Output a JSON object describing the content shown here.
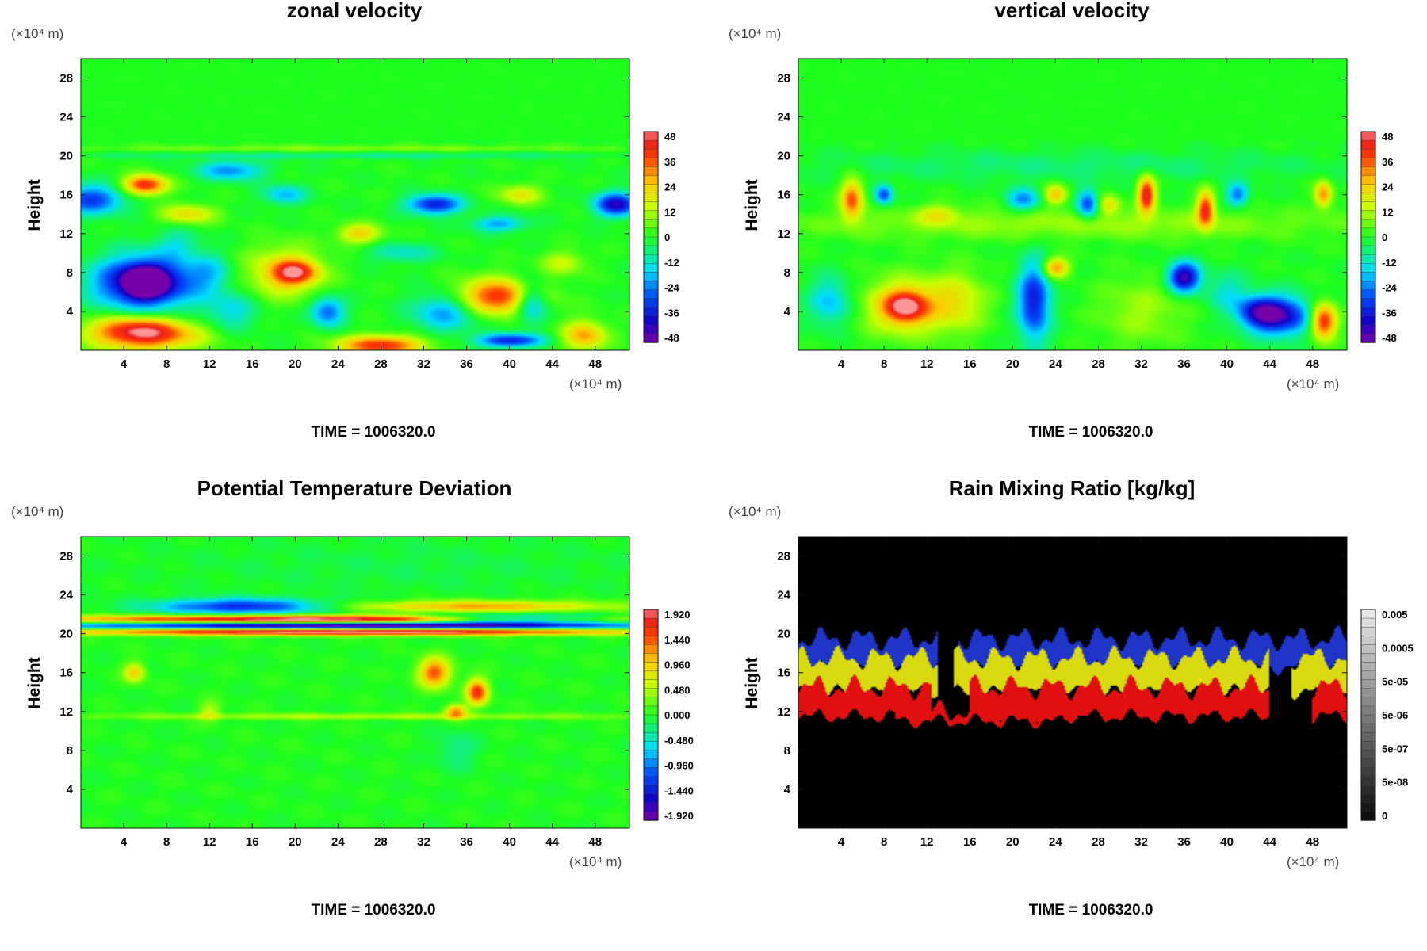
{
  "figure": {
    "panels": [
      {
        "id": "zonal",
        "title": "zonal velocity",
        "ylabel": "Height",
        "y_unit": "(×10⁴ m)",
        "x_unit": "(×10⁴ m)",
        "time_label": "TIME = 1006320.0"
      },
      {
        "id": "vertical",
        "title": "vertical velocity",
        "ylabel": "Height",
        "y_unit": "(×10⁴ m)",
        "x_unit": "(×10⁴ m)",
        "time_label": "TIME = 1006320.0"
      },
      {
        "id": "theta",
        "title": "Potential Temperature Deviation",
        "ylabel": "Height",
        "y_unit": "(×10⁴ m)",
        "x_unit": "(×10⁴ m)",
        "time_label": "TIME = 1006320.0"
      },
      {
        "id": "rain",
        "title": "Rain Mixing Ratio [kg/kg]",
        "ylabel": "Height",
        "y_unit": "(×10⁴ m)",
        "x_unit": "(×10⁴ m)",
        "time_label": "TIME = 1006320.0"
      }
    ]
  },
  "chart_data": [
    {
      "type": "heatmap",
      "title": "zonal velocity",
      "xlabel": "",
      "ylabel": "Height",
      "xlim": [
        0,
        51.2
      ],
      "ylim": [
        0,
        30
      ],
      "x_ticks": [
        4,
        8,
        12,
        16,
        20,
        24,
        28,
        32,
        36,
        40,
        44,
        48
      ],
      "y_ticks": [
        4,
        8,
        12,
        16,
        20,
        24,
        28
      ],
      "colorbar": {
        "scale": "rainbow",
        "min": -48,
        "max": 48,
        "labels": [
          "48",
          "36",
          "24",
          "12",
          "0",
          "-12",
          "-24",
          "-36",
          "-48"
        ]
      },
      "background_color": "#22ff22",
      "features": [
        {
          "x": 6,
          "y": 7,
          "rx": 4.5,
          "ry": 2.6,
          "v": -50
        },
        {
          "x": 6,
          "y": 7,
          "rx": 1.5,
          "ry": 1.2,
          "v": -60
        },
        {
          "x": 6,
          "y": 1.5,
          "rx": 5,
          "ry": 1.5,
          "v": 40
        },
        {
          "x": 28,
          "y": 0.5,
          "rx": 4,
          "ry": 1,
          "v": 40
        },
        {
          "x": 19,
          "y": 8,
          "rx": 3.5,
          "ry": 2.6,
          "v": 22
        },
        {
          "x": 20,
          "y": 8,
          "rx": 2,
          "ry": 1.2,
          "v": 32
        },
        {
          "x": 39,
          "y": 5.5,
          "rx": 4,
          "ry": 1.8,
          "v": 40
        },
        {
          "x": 5,
          "y": 2.5,
          "rx": 4,
          "ry": 1.2,
          "v": 18
        },
        {
          "x": 42,
          "y": 5,
          "rx": 1.5,
          "ry": 2,
          "v": -30
        },
        {
          "x": 34,
          "y": 4,
          "rx": 3,
          "ry": 2,
          "v": -22
        },
        {
          "x": 23,
          "y": 4,
          "rx": 1.6,
          "ry": 1.5,
          "v": -26
        },
        {
          "x": 10,
          "y": 14,
          "rx": 2.5,
          "ry": 1,
          "v": 20
        },
        {
          "x": 6,
          "y": 17,
          "rx": 2,
          "ry": 1,
          "v": 42
        },
        {
          "x": 1,
          "y": 15.5,
          "rx": 3,
          "ry": 1.5,
          "v": -30
        },
        {
          "x": 14,
          "y": 18.5,
          "rx": 3,
          "ry": 1,
          "v": -22
        },
        {
          "x": 19,
          "y": 16,
          "rx": 2,
          "ry": 1,
          "v": -18
        },
        {
          "x": 33,
          "y": 15,
          "rx": 2.5,
          "ry": 1,
          "v": -35
        },
        {
          "x": 50,
          "y": 15,
          "rx": 2,
          "ry": 1.2,
          "v": -40
        },
        {
          "x": 39,
          "y": 13,
          "rx": 2.5,
          "ry": 0.8,
          "v": -20
        },
        {
          "x": 41,
          "y": 16,
          "rx": 2,
          "ry": 1,
          "v": 18
        },
        {
          "x": 47,
          "y": 1.5,
          "rx": 2,
          "ry": 1.5,
          "v": 28
        },
        {
          "x": 40,
          "y": 1,
          "rx": 3,
          "ry": 0.7,
          "v": -34
        },
        {
          "x": 26,
          "y": 12,
          "rx": 2,
          "ry": 1,
          "v": 22
        },
        {
          "x": 45,
          "y": 9,
          "rx": 2,
          "ry": 1.2,
          "v": 14
        },
        {
          "x": 30,
          "y": 10,
          "rx": 3,
          "ry": 1,
          "v": -12
        },
        {
          "x": 12,
          "y": 8,
          "rx": 2,
          "ry": 2,
          "v": -12
        },
        {
          "x": 14,
          "y": 4,
          "rx": 2.5,
          "ry": 2,
          "v": -14
        },
        {
          "x": 9,
          "y": 11,
          "rx": 2,
          "ry": 1.5,
          "v": -10
        },
        {
          "x": 25,
          "y": 20.8,
          "rx": 26,
          "ry": 0.3,
          "v": 8
        },
        {
          "x": 25,
          "y": 20,
          "rx": 26,
          "ry": 0.3,
          "v": -8
        }
      ]
    },
    {
      "type": "heatmap",
      "title": "vertical velocity",
      "xlabel": "",
      "ylabel": "Height",
      "xlim": [
        0,
        51.2
      ],
      "ylim": [
        0,
        30
      ],
      "x_ticks": [
        4,
        8,
        12,
        16,
        20,
        24,
        28,
        32,
        36,
        40,
        44,
        48
      ],
      "y_ticks": [
        4,
        8,
        12,
        16,
        20,
        24,
        28
      ],
      "colorbar": {
        "scale": "rainbow",
        "min": -48,
        "max": 48,
        "labels": [
          "48",
          "36",
          "24",
          "12",
          "0",
          "-12",
          "-24",
          "-36",
          "-48"
        ]
      },
      "background_color": "#22ff22",
      "features": [
        {
          "x": 10,
          "y": 4.5,
          "rx": 4,
          "ry": 3,
          "v": 22
        },
        {
          "x": 10,
          "y": 4.5,
          "rx": 2,
          "ry": 1.6,
          "v": 34
        },
        {
          "x": 15,
          "y": 5,
          "rx": 2.5,
          "ry": 3,
          "v": 16
        },
        {
          "x": 32,
          "y": 4,
          "rx": 4,
          "ry": 3.5,
          "v": 10
        },
        {
          "x": 49,
          "y": 3,
          "rx": 1.2,
          "ry": 1.8,
          "v": 45
        },
        {
          "x": 45,
          "y": 3.5,
          "rx": 3,
          "ry": 2,
          "v": -38
        },
        {
          "x": 43,
          "y": 4,
          "rx": 2,
          "ry": 1.5,
          "v": -26
        },
        {
          "x": 22,
          "y": 5,
          "rx": 1.5,
          "ry": 4,
          "v": -35
        },
        {
          "x": 36,
          "y": 7.5,
          "rx": 1.5,
          "ry": 1.5,
          "v": -45
        },
        {
          "x": 3,
          "y": 5,
          "rx": 2,
          "ry": 2.5,
          "v": -18
        },
        {
          "x": 40,
          "y": 6,
          "rx": 2,
          "ry": 2,
          "v": -12
        },
        {
          "x": 5,
          "y": 15.5,
          "rx": 1,
          "ry": 2,
          "v": 35
        },
        {
          "x": 32.5,
          "y": 16,
          "rx": 0.8,
          "ry": 1.8,
          "v": 45
        },
        {
          "x": 38,
          "y": 14.5,
          "rx": 0.8,
          "ry": 1.8,
          "v": 40
        },
        {
          "x": 49,
          "y": 16,
          "rx": 0.8,
          "ry": 1.3,
          "v": 30
        },
        {
          "x": 27,
          "y": 15,
          "rx": 1,
          "ry": 1.5,
          "v": -30
        },
        {
          "x": 8,
          "y": 16,
          "rx": 0.8,
          "ry": 1,
          "v": -28
        },
        {
          "x": 21,
          "y": 15.5,
          "rx": 1.5,
          "ry": 1.2,
          "v": -22
        },
        {
          "x": 24,
          "y": 16,
          "rx": 1,
          "ry": 1,
          "v": 24
        },
        {
          "x": 29,
          "y": 15,
          "rx": 1,
          "ry": 1,
          "v": 18
        },
        {
          "x": 41,
          "y": 16,
          "rx": 1,
          "ry": 1.2,
          "v": -24
        },
        {
          "x": 13,
          "y": 14,
          "rx": 2,
          "ry": 1,
          "v": 14
        },
        {
          "x": 25,
          "y": 19,
          "rx": 26,
          "ry": 1.5,
          "v": -6
        },
        {
          "x": 25,
          "y": 13,
          "rx": 26,
          "ry": 1.5,
          "v": 10
        },
        {
          "x": 24,
          "y": 8.5,
          "rx": 1.2,
          "ry": 1,
          "v": 30
        }
      ]
    },
    {
      "type": "heatmap",
      "title": "Potential Temperature Deviation",
      "xlabel": "",
      "ylabel": "Height",
      "xlim": [
        0,
        51.2
      ],
      "ylim": [
        0,
        30
      ],
      "x_ticks": [
        4,
        8,
        12,
        16,
        20,
        24,
        28,
        32,
        36,
        40,
        44,
        48
      ],
      "y_ticks": [
        4,
        8,
        12,
        16,
        20,
        24,
        28
      ],
      "colorbar": {
        "scale": "rainbow",
        "min": -1.92,
        "max": 1.92,
        "labels": [
          "1.920",
          "1.440",
          "0.960",
          "0.480",
          "0.000",
          "-0.480",
          "-0.960",
          "-1.440",
          "-1.920"
        ]
      },
      "background_color": "#22ff22",
      "features": [
        {
          "x": 25,
          "y": 21.5,
          "rx": 27,
          "ry": 0.4,
          "v": 2.2
        },
        {
          "x": 25,
          "y": 20.8,
          "rx": 27,
          "ry": 0.35,
          "v": -2.0
        },
        {
          "x": 25,
          "y": 20.2,
          "rx": 27,
          "ry": 0.35,
          "v": 2.2
        },
        {
          "x": 40,
          "y": 21.5,
          "rx": 10,
          "ry": 0.5,
          "v": -1.9
        },
        {
          "x": 37,
          "y": 22.8,
          "rx": 12,
          "ry": 0.6,
          "v": 1.1
        },
        {
          "x": 15,
          "y": 22.8,
          "rx": 8,
          "ry": 0.8,
          "v": -1.3
        },
        {
          "x": 33,
          "y": 16,
          "rx": 1.5,
          "ry": 1.5,
          "v": 1.4
        },
        {
          "x": 37,
          "y": 14,
          "rx": 1,
          "ry": 1.3,
          "v": 1.6
        },
        {
          "x": 35,
          "y": 12,
          "rx": 1,
          "ry": 0.7,
          "v": 1.2
        },
        {
          "x": 26,
          "y": 11.5,
          "rx": 27,
          "ry": 0.3,
          "v": 0.5
        },
        {
          "x": 5,
          "y": 16,
          "rx": 1,
          "ry": 1,
          "v": 0.9
        },
        {
          "x": 12,
          "y": 12,
          "rx": 1,
          "ry": 1,
          "v": 0.5
        },
        {
          "x": 35,
          "y": 8,
          "rx": 2,
          "ry": 2,
          "v": -0.3
        },
        {
          "x": 30,
          "y": 27,
          "rx": 22,
          "ry": 3,
          "v": -0.12
        }
      ]
    },
    {
      "type": "heatmap",
      "title": "Rain Mixing Ratio [kg/kg]",
      "xlabel": "",
      "ylabel": "Height",
      "xlim": [
        0,
        51.2
      ],
      "ylim": [
        0,
        30
      ],
      "x_ticks": [
        4,
        8,
        12,
        16,
        20,
        24,
        28,
        32,
        36,
        40,
        44,
        48
      ],
      "y_ticks": [
        4,
        8,
        12,
        16,
        20,
        24,
        28
      ],
      "colorbar": {
        "scale": "log-gray",
        "labels": [
          "0.005",
          "0.0005",
          "5e-05",
          "5e-06",
          "5e-07",
          "5e-08",
          "0"
        ]
      },
      "background_color": "#000000",
      "bands": [
        {
          "color": "#1f35c8",
          "y0": 16.5,
          "y1": 19.5,
          "x0": 0,
          "x1": 51.2,
          "gaps": [
            [
              13,
              15
            ]
          ]
        },
        {
          "color": "#d9d90f",
          "y0": 14,
          "y1": 17.5,
          "x0": 0,
          "x1": 51.2,
          "gaps": [
            [
              13,
              14.5
            ],
            [
              44,
              46
            ]
          ]
        },
        {
          "color": "#e01010",
          "y0": 11.5,
          "y1": 14.5,
          "x0": 0,
          "x1": 51.2,
          "gaps": [
            [
              12.5,
              16
            ],
            [
              44,
              48
            ]
          ]
        },
        {
          "color": "#e01010",
          "y0": 11,
          "y1": 12,
          "x0": 9,
          "x1": 25,
          "gaps": []
        }
      ]
    }
  ]
}
